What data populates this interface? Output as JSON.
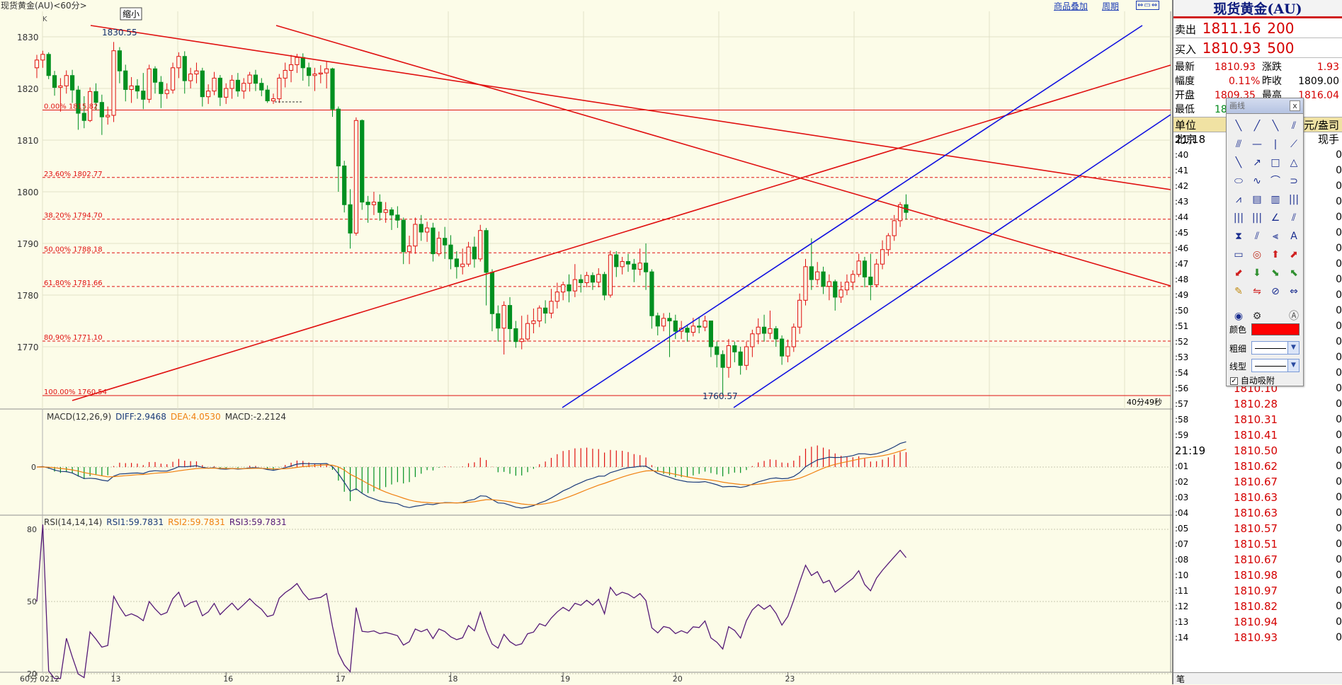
{
  "chart": {
    "title": "现货黄金(AU)<60分>",
    "k_label": "K",
    "zoom_label": "缩小",
    "overlay_link": "商品叠加",
    "period_link": "周期",
    "countdown": "40分49秒",
    "high_annotation": "1830.55",
    "low_annotation": "1760.57",
    "x_axis_period": "60分",
    "x_labels": [
      {
        "text": "0212",
        "bar": 0
      },
      {
        "text": "13",
        "bar": 13
      },
      {
        "text": "16",
        "bar": 32
      },
      {
        "text": "17",
        "bar": 51
      },
      {
        "text": "18",
        "bar": 70
      },
      {
        "text": "19",
        "bar": 89
      },
      {
        "text": "20",
        "bar": 108
      },
      {
        "text": "23",
        "bar": 127
      }
    ],
    "price_ticks": [
      "1830",
      "1820",
      "1810",
      "1800",
      "1790",
      "1780",
      "1770"
    ],
    "fib_levels": [
      {
        "label": "0.00% 1815.82",
        "value": 1815.82,
        "solid": true
      },
      {
        "label": "23.60% 1802.77",
        "value": 1802.77,
        "solid": false
      },
      {
        "label": "38.20% 1794.70",
        "value": 1794.7,
        "solid": false
      },
      {
        "label": "50.00% 1788.18",
        "value": 1788.18,
        "solid": false
      },
      {
        "label": "61.80% 1781.66",
        "value": 1781.66,
        "solid": false
      },
      {
        "label": "80.90% 1771.10",
        "value": 1771.1,
        "solid": false
      },
      {
        "label": "100.00% 1760.54",
        "value": 1760.54,
        "solid": true
      }
    ],
    "macd_label": "MACD(12,26,9)",
    "macd_diff": "DIFF:2.9468",
    "macd_dea": "DEA:4.0530",
    "macd_val": "MACD:-2.2124",
    "macd_zero": "0",
    "rsi_label": "RSI(14,14,14)",
    "rsi1": "RSI1:59.7831",
    "rsi2": "RSI2:59.7831",
    "rsi3": "RSI3:59.7831",
    "rsi_ticks": [
      "80",
      "50",
      "20"
    ],
    "colors": {
      "up": "#e01010",
      "down": "#009020",
      "diff": "#1a3a7a",
      "dea": "#f08010",
      "rsi": "#551a77",
      "trend_red": "#e01010",
      "trend_blue": "#1010e0"
    }
  },
  "quote": {
    "title": "现货黄金(AU)",
    "sell_label": "卖出",
    "sell_price": "1811.16",
    "sell_vol": "200",
    "buy_label": "买入",
    "buy_price": "1810.93",
    "buy_vol": "500",
    "latest_label": "最新",
    "latest": "1810.93",
    "change_label": "涨跌",
    "change": "1.93",
    "amp_label": "幅度",
    "amp": "0.11%",
    "prevclose_label": "昨收",
    "prevclose": "1809.00",
    "open_label": "开盘",
    "open": "1809.35",
    "high_label": "最高",
    "high": "1816.04",
    "low_label": "最低",
    "low": "180",
    "unit_label": "单位",
    "unit_value": "元/盎司",
    "city_label": "北京",
    "now_label": "现手"
  },
  "ticks": [
    {
      "t": "21:18",
      "p": "",
      "v": "",
      "hour": true
    },
    {
      "t": ":40",
      "p": "",
      "v": "0"
    },
    {
      "t": ":41",
      "p": "",
      "v": "0"
    },
    {
      "t": ":42",
      "p": "",
      "v": "0"
    },
    {
      "t": ":43",
      "p": "",
      "v": "0"
    },
    {
      "t": ":44",
      "p": "",
      "v": "0"
    },
    {
      "t": ":45",
      "p": "",
      "v": "0"
    },
    {
      "t": ":46",
      "p": "",
      "v": "0"
    },
    {
      "t": ":47",
      "p": "",
      "v": "0"
    },
    {
      "t": ":48",
      "p": "",
      "v": "0"
    },
    {
      "t": ":49",
      "p": "",
      "v": "0"
    },
    {
      "t": ":50",
      "p": "",
      "v": "0"
    },
    {
      "t": ":51",
      "p": "",
      "v": "0"
    },
    {
      "t": ":52",
      "p": "",
      "v": "0"
    },
    {
      "t": ":53",
      "p": "",
      "v": "0"
    },
    {
      "t": ":54",
      "p": "1810.30",
      "v": "0"
    },
    {
      "t": ":56",
      "p": "1810.10",
      "v": "0"
    },
    {
      "t": ":57",
      "p": "1810.28",
      "v": "0"
    },
    {
      "t": ":58",
      "p": "1810.31",
      "v": "0"
    },
    {
      "t": ":59",
      "p": "1810.41",
      "v": "0"
    },
    {
      "t": "21:19",
      "p": "1810.50",
      "v": "0",
      "hour": true
    },
    {
      "t": ":01",
      "p": "1810.62",
      "v": "0"
    },
    {
      "t": ":02",
      "p": "1810.67",
      "v": "0"
    },
    {
      "t": ":03",
      "p": "1810.63",
      "v": "0"
    },
    {
      "t": ":04",
      "p": "1810.63",
      "v": "0"
    },
    {
      "t": ":05",
      "p": "1810.57",
      "v": "0"
    },
    {
      "t": ":07",
      "p": "1810.51",
      "v": "0"
    },
    {
      "t": ":08",
      "p": "1810.67",
      "v": "0"
    },
    {
      "t": ":10",
      "p": "1810.98",
      "v": "0"
    },
    {
      "t": ":11",
      "p": "1810.97",
      "v": "0"
    },
    {
      "t": ":12",
      "p": "1810.82",
      "v": "0"
    },
    {
      "t": ":13",
      "p": "1810.94",
      "v": "0"
    },
    {
      "t": ":14",
      "p": "1810.93",
      "v": "0"
    }
  ],
  "bottom_label": "笔",
  "draw_tools": {
    "title": "画线",
    "close": "x",
    "icons": [
      "line-tool-icon",
      "ray-tool-icon",
      "segment-tool-icon",
      "parallel-tool-icon",
      "multi-line-icon",
      "horizontal-line-icon",
      "vertical-line-icon",
      "angle-line-icon",
      "down-ray-icon",
      "up-arrow-line-icon",
      "rectangle-icon",
      "triangle-icon",
      "ellipse-icon",
      "wave-icon",
      "arc-icon",
      "half-circle-icon",
      "fib-fan-icon",
      "fib-retrace-icon",
      "fib-ext-icon",
      "grid-icon",
      "gann-icon",
      "cycle-icon",
      "angle-icon",
      "speed-line-icon",
      "fib-time-icon",
      "pitchfork-icon",
      "stat-line-icon",
      "text-icon",
      "ruler-icon",
      "target-icon",
      "up-arrow-icon",
      "up-right-arrow-icon",
      "down-left-arrow-icon",
      "down-arrow-icon",
      "down-right-arrow-icon",
      "up-left-arrow-icon",
      "pencil-icon",
      "buy-sell-icon",
      "hide-icon",
      "restore-icon",
      "eye-icon",
      "gear-icon",
      "blank-icon",
      "help-icon"
    ],
    "glyphs": [
      "╲",
      "╱",
      "╲",
      "⫽",
      "⫻",
      "—",
      "|",
      "⟋",
      "╲",
      "↗",
      "□",
      "△",
      "⬭",
      "∿",
      "⌒",
      "⊃",
      "⩘",
      "▤",
      "▥",
      "|||",
      "|||",
      "|||",
      "∠",
      "⫽",
      "⧗",
      "⫽",
      "⫷",
      "A",
      "▭",
      "◎",
      "⬆",
      "⬈",
      "⬋",
      "⬇",
      "⬊",
      "⬉",
      "✎",
      "⇋",
      "⊘",
      "⇔",
      "◉",
      "⚙",
      "",
      "Ⓐ"
    ],
    "color_label": "颜色",
    "color_value": "#ff0000",
    "width_label": "粗细",
    "style_label": "线型",
    "auto_snap_label": "自动吸附"
  }
}
